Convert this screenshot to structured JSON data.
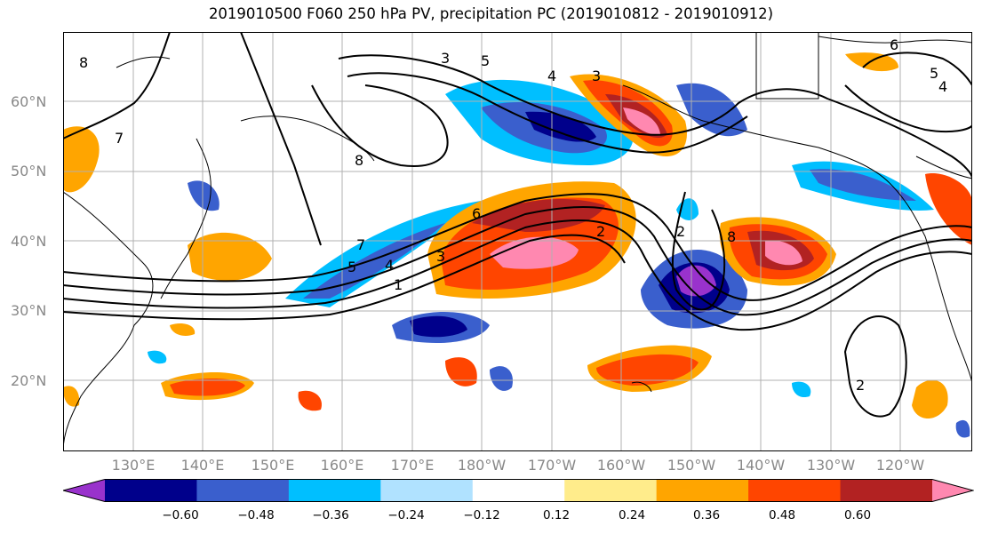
{
  "title": "2019010500 F060 250 hPa PV, precipitation PC (2019010812 - 2019010912)",
  "lat_labels": [
    "60°N",
    "50°N",
    "40°N",
    "30°N",
    "20°N"
  ],
  "lon_labels": [
    "130°E",
    "140°E",
    "150°E",
    "160°E",
    "170°E",
    "180°W",
    "170°W",
    "160°W",
    "150°W",
    "140°W",
    "130°W",
    "120°W"
  ],
  "colorbar": {
    "ticks": [
      "−0.60",
      "−0.48",
      "−0.36",
      "−0.24",
      "−0.12",
      "0.12",
      "0.24",
      "0.36",
      "0.48",
      "0.60"
    ],
    "colors": [
      "#9932CC",
      "#00008B",
      "#3A5FCD",
      "#00BFFF",
      "#B0E2FF",
      "#FFFFFF",
      "#FFEC8B",
      "#FFA500",
      "#FF4500",
      "#B22222",
      "#FF88B0"
    ]
  },
  "contour_labels": [
    "8",
    "7",
    "3",
    "4",
    "5",
    "6",
    "2",
    "1",
    "8",
    "7",
    "8",
    "2",
    "3",
    "4",
    "5",
    "6",
    "4",
    "5",
    "3",
    "2"
  ],
  "palette": {
    "ocean": "#ffffff",
    "grid": "#b0b0b0",
    "coast": "#000000"
  }
}
